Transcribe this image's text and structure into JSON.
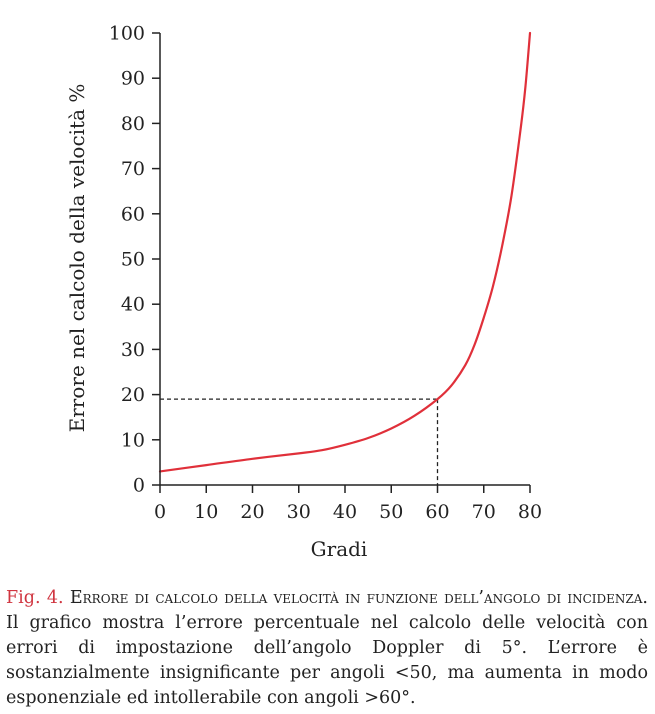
{
  "chart_data": {
    "type": "line",
    "xlabel": "Gradi",
    "ylabel": "Errore nel calcolo della velocità %",
    "xlim": [
      0,
      80
    ],
    "ylim": [
      0,
      100
    ],
    "x_ticks": [
      "0",
      "10",
      "20",
      "30",
      "40",
      "50",
      "60",
      "70",
      "80"
    ],
    "y_ticks": [
      "0",
      "10",
      "20",
      "30",
      "40",
      "50",
      "60",
      "70",
      "80",
      "90",
      "100"
    ],
    "grid": false,
    "series": [
      {
        "color": "#e0303a",
        "x": [
          0,
          10,
          20,
          30,
          35,
          40,
          45,
          50,
          55,
          60,
          63,
          66,
          68,
          70,
          72,
          74,
          76,
          78,
          79,
          80
        ],
        "y": [
          3,
          4.4,
          5.8,
          7,
          7.7,
          8.9,
          10.4,
          12.5,
          15.3,
          19,
          22,
          26.5,
          31,
          37,
          44,
          53,
          64,
          79,
          88,
          100
        ]
      }
    ],
    "reference_lines": [
      {
        "x": 60,
        "y": 19,
        "style": "dashed",
        "color": "#222222"
      }
    ]
  },
  "caption": {
    "fig_number": "Fig. 4.",
    "fig_title": "Errore di calcolo della velocità in funzione dell’angolo di incidenza.",
    "text": "Il grafico mostra l’errore percentuale nel calcolo delle velocità con errori di impostazione dell’angolo Doppler di 5°. L’errore è sostanzialmente insignificante per angoli <50, ma aumenta in modo esponenziale ed intollerabile con angoli >60°."
  }
}
